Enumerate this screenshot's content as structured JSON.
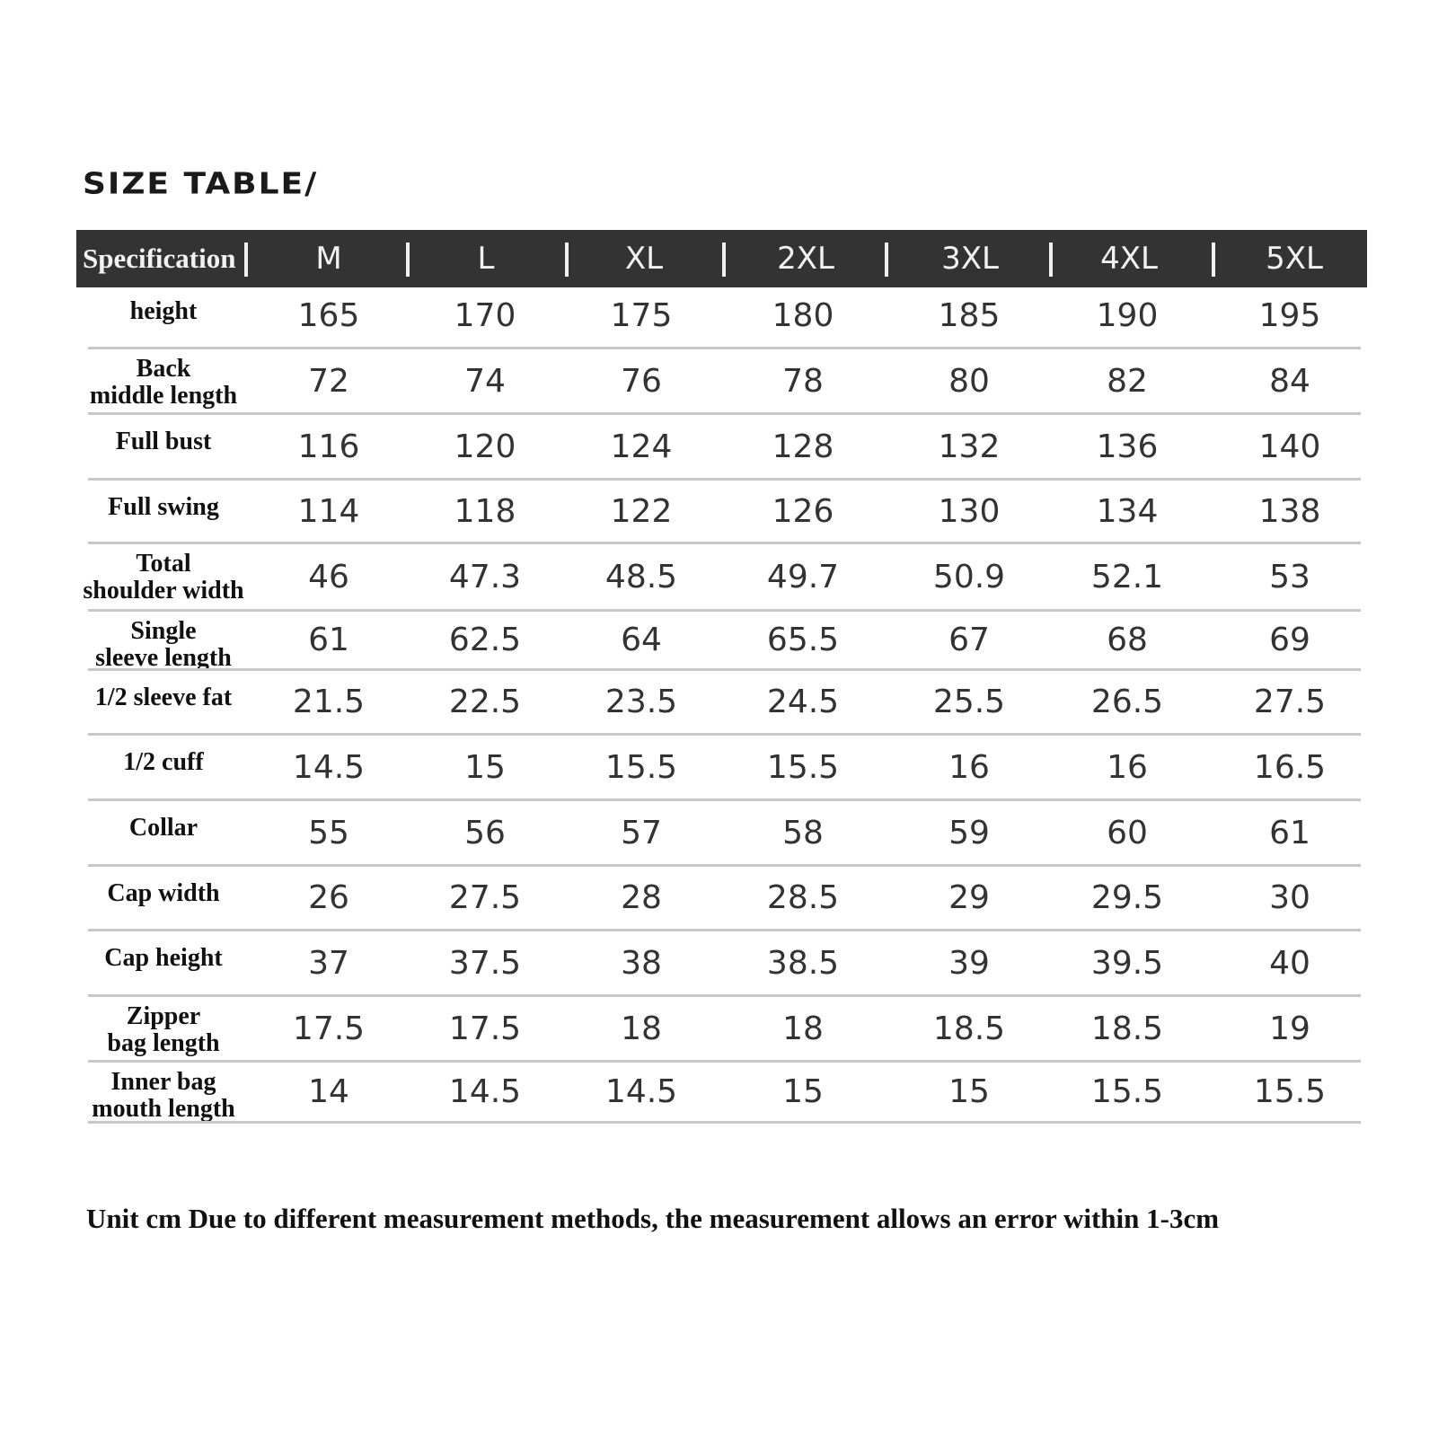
{
  "title": "SIZE TABLE/",
  "header": {
    "spec_label": "Specification",
    "sizes": [
      "M",
      "L",
      "XL",
      "2XL",
      "3XL",
      "4XL",
      "5XL"
    ]
  },
  "rows": [
    {
      "label": "height",
      "values": [
        "165",
        "170",
        "175",
        "180",
        "185",
        "190",
        "195"
      ]
    },
    {
      "label": "Back middle length",
      "values": [
        "72",
        "74",
        "76",
        "78",
        "80",
        "82",
        "84"
      ]
    },
    {
      "label": "Full bust",
      "values": [
        "116",
        "120",
        "124",
        "128",
        "132",
        "136",
        "140"
      ]
    },
    {
      "label": "Full swing",
      "values": [
        "114",
        "118",
        "122",
        "126",
        "130",
        "134",
        "138"
      ]
    },
    {
      "label": "Total shoulder width",
      "values": [
        "46",
        "47.3",
        "48.5",
        "49.7",
        "50.9",
        "52.1",
        "53"
      ]
    },
    {
      "label": "Single sleeve length",
      "values": [
        "61",
        "62.5",
        "64",
        "65.5",
        "67",
        "68",
        "69"
      ]
    },
    {
      "label": "1/2 sleeve fat",
      "values": [
        "21.5",
        "22.5",
        "23.5",
        "24.5",
        "25.5",
        "26.5",
        "27.5"
      ]
    },
    {
      "label": "1/2 cuff",
      "values": [
        "14.5",
        "15",
        "15.5",
        "15.5",
        "16",
        "16",
        "16.5"
      ]
    },
    {
      "label": "Collar",
      "values": [
        "55",
        "56",
        "57",
        "58",
        "59",
        "60",
        "61"
      ]
    },
    {
      "label": "Cap width",
      "values": [
        "26",
        "27.5",
        "28",
        "28.5",
        "29",
        "29.5",
        "30"
      ]
    },
    {
      "label": "Cap height",
      "values": [
        "37",
        "37.5",
        "38",
        "38.5",
        "39",
        "39.5",
        "40"
      ]
    },
    {
      "label": "Zipper bag length",
      "values": [
        "17.5",
        "17.5",
        "18",
        "18",
        "18.5",
        "18.5",
        "19"
      ]
    },
    {
      "label": "Inner bag mouth length",
      "values": [
        "14",
        "14.5",
        "14.5",
        "15",
        "15",
        "15.5",
        "15.5"
      ]
    }
  ],
  "footnote": "Unit cm Due to different measurement methods, the measurement allows an error within 1-3cm"
}
